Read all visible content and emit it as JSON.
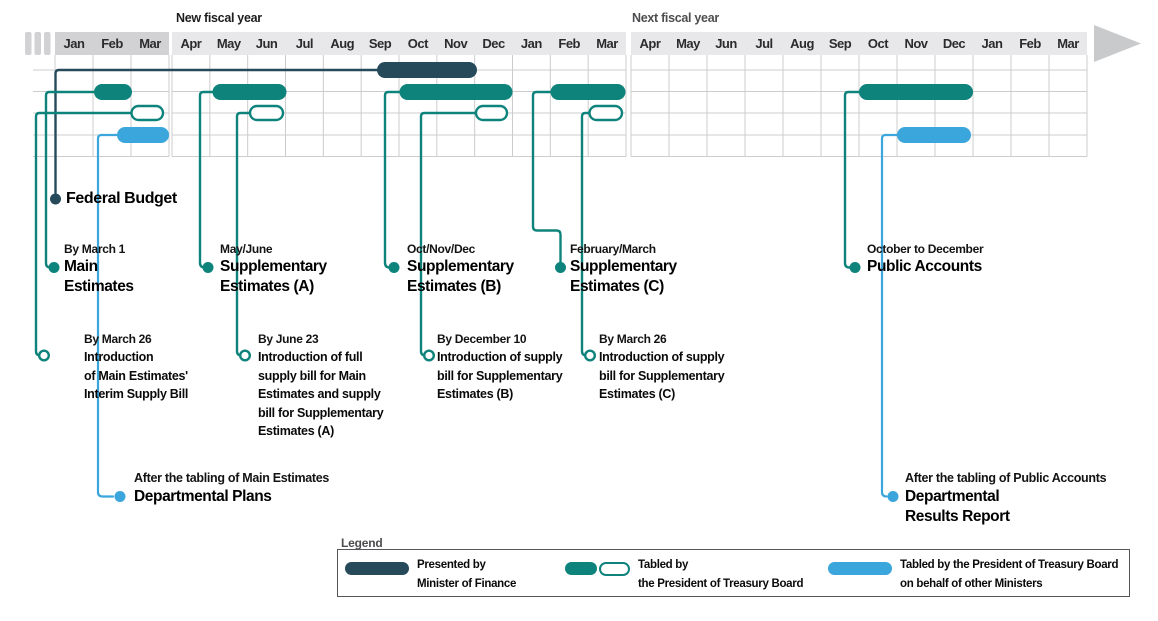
{
  "header": {
    "new_fiscal_year": "New fiscal year",
    "next_fiscal_year": "Next fiscal year"
  },
  "timeline": {
    "sections": [
      {
        "months": [
          "Jan",
          "Feb",
          "Mar"
        ]
      },
      {
        "months": [
          "Apr",
          "May",
          "Jun",
          "Jul",
          "Aug",
          "Sep",
          "Oct",
          "Nov",
          "Dec",
          "Jan",
          "Feb",
          "Mar"
        ]
      },
      {
        "months": [
          "Apr",
          "May",
          "Jun",
          "Jul",
          "Aug",
          "Sep",
          "Oct",
          "Nov",
          "Dec",
          "Jan",
          "Feb",
          "Mar"
        ]
      }
    ],
    "bars": [
      {
        "id": "federal-budget",
        "span": "Sep–Nov (new fiscal year)",
        "style": "navy"
      },
      {
        "id": "main-estimates",
        "span": "Feb",
        "style": "teal"
      },
      {
        "id": "interim-supply-bill",
        "span": "Mar",
        "style": "teal-outline"
      },
      {
        "id": "departmental-plans",
        "span": "Feb–Mar",
        "style": "blue"
      },
      {
        "id": "supplementary-estimates-a",
        "span": "May–Jun",
        "style": "teal"
      },
      {
        "id": "full-supply-bill",
        "span": "Jun",
        "style": "teal-outline"
      },
      {
        "id": "supplementary-estimates-b",
        "span": "Oct–Dec",
        "style": "teal"
      },
      {
        "id": "supply-bill-b",
        "span": "Dec",
        "style": "teal-outline"
      },
      {
        "id": "supplementary-estimates-c",
        "span": "Feb–Mar",
        "style": "teal"
      },
      {
        "id": "supply-bill-c",
        "span": "Mar",
        "style": "teal-outline"
      },
      {
        "id": "public-accounts",
        "span": "Oct–Dec (next fiscal year)",
        "style": "teal"
      },
      {
        "id": "departmental-results-report",
        "span": "Nov–Dec (next fiscal year)",
        "style": "blue"
      }
    ]
  },
  "events": {
    "federal_budget": {
      "name": "Federal Budget"
    },
    "main_estimates": {
      "date": "By March 1",
      "name_lines": [
        "Main",
        "Estimates"
      ]
    },
    "supp_a": {
      "date": "May/June",
      "name_lines": [
        "Supplementary",
        "Estimates (A)"
      ]
    },
    "supp_b": {
      "date": "Oct/Nov/Dec",
      "name_lines": [
        "Supplementary",
        "Estimates (B)"
      ]
    },
    "supp_c": {
      "date": "February/March",
      "name_lines": [
        "Supplementary",
        "Estimates (C)"
      ]
    },
    "public_accounts": {
      "date": "October to December",
      "name_lines": [
        "Public Accounts"
      ]
    }
  },
  "supply_bills": {
    "interim": {
      "date": "By March 26",
      "lines": [
        "Introduction",
        "of Main Estimates'",
        "Interim Supply Bill"
      ]
    },
    "full_a": {
      "date": "By June 23",
      "lines": [
        "Introduction of full",
        "supply bill for Main",
        "Estimates and supply",
        "bill for Supplementary",
        "Estimates (A)"
      ]
    },
    "supp_b": {
      "date": "By December 10",
      "lines": [
        "Introduction of supply",
        "bill for Supplementary",
        "Estimates (B)"
      ]
    },
    "supp_c": {
      "date": "By March 26",
      "lines": [
        "Introduction of supply",
        "bill for Supplementary",
        "Estimates (C)"
      ]
    }
  },
  "departmental": {
    "plans": {
      "date": "After the tabling of Main Estimates",
      "name_lines": [
        "Departmental Plans"
      ]
    },
    "results": {
      "date": "After the tabling of Public Accounts",
      "name_lines": [
        "Departmental",
        "Results Report"
      ]
    }
  },
  "legend": {
    "title": "Legend",
    "items": [
      {
        "label_lines": [
          "Presented by",
          "Minister of Finance"
        ]
      },
      {
        "label_lines": [
          "Tabled by",
          "the President of Treasury Board"
        ]
      },
      {
        "label_lines": [
          "Tabled by the President of Treasury Board",
          "on behalf of other Ministers"
        ]
      }
    ]
  },
  "colors": {
    "finance_navy": "#274A5A",
    "treasury_teal": "#0E837C",
    "other_ministers_blue": "#3BA6DC",
    "grid_gray": "#CCCCCC",
    "band_current_gray": "#D2D2D4",
    "band_light_gray": "#E8E8EA"
  }
}
